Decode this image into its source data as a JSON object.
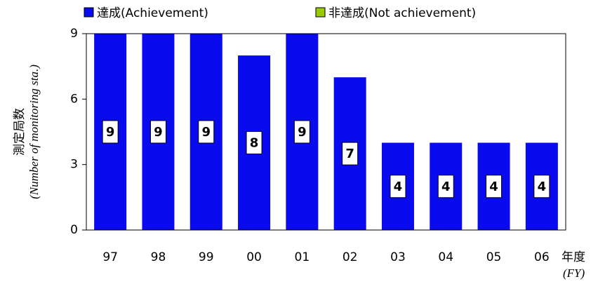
{
  "chart_data": {
    "type": "stacked_bar",
    "categories": [
      "97",
      "98",
      "99",
      "00",
      "01",
      "02",
      "03",
      "04",
      "05",
      "06"
    ],
    "series": [
      {
        "name": "達成(Achievement)",
        "color": "#0a0aee",
        "values": [
          9,
          9,
          9,
          8,
          9,
          7,
          4,
          4,
          4,
          4
        ]
      },
      {
        "name": "非達成(Not achievement)",
        "color": "#99cc00",
        "values": [
          0,
          0,
          0,
          0,
          0,
          0,
          0,
          0,
          0,
          0
        ]
      }
    ],
    "y_label": "測定局数",
    "y_label_en": "(Number of monitoring sta.)",
    "x_label": "年度",
    "x_label_en": "(FY)",
    "ylim": [
      0,
      9
    ],
    "yticks": [
      0,
      3,
      6,
      9
    ],
    "legend": "top"
  }
}
